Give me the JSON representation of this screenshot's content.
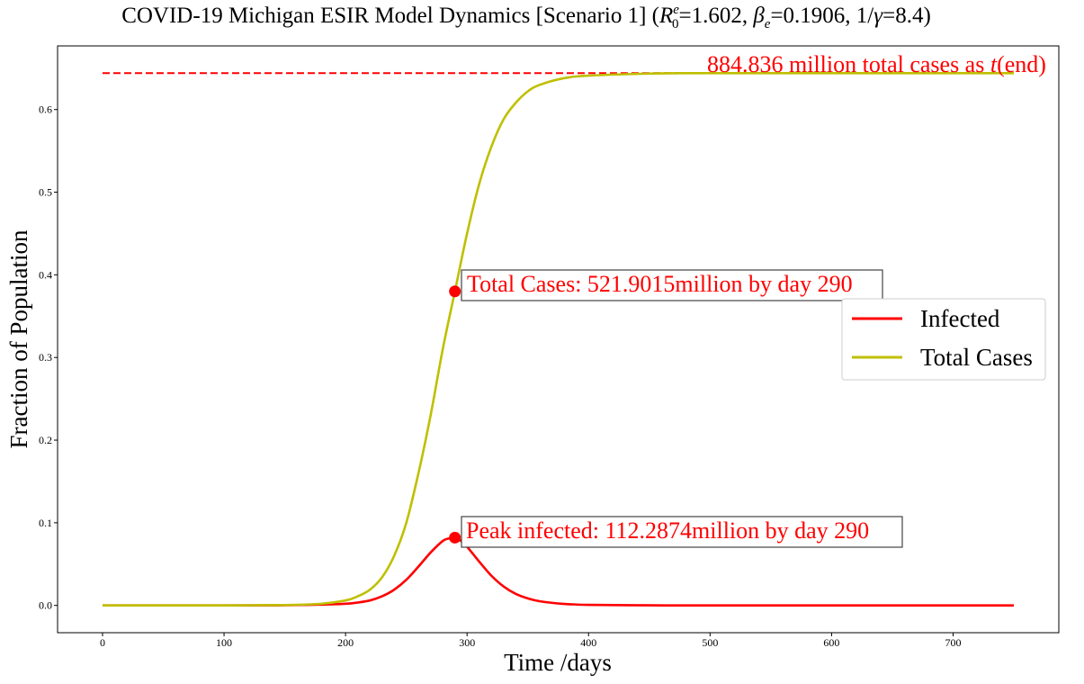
{
  "chart_data": {
    "type": "line",
    "title": "COVID-19 Michigan ESIR Model Dynamics [Scenario 1] (",
    "title_params": {
      "r0_symbol": "R",
      "r0_sup": "e",
      "r0_sub": "0",
      "r0_value": "=1.602, ",
      "beta_symbol": "β",
      "beta_sub": "e",
      "beta_value": "=0.1906, 1/",
      "gamma_symbol": "γ",
      "gamma_value": "=8.4)"
    },
    "xlabel": "Time /days",
    "ylabel": "Fraction of Population",
    "xlim": [
      -37,
      787
    ],
    "ylim": [
      -0.033,
      0.677
    ],
    "xticks": [
      0,
      100,
      200,
      300,
      400,
      500,
      600,
      700
    ],
    "yticks": [
      0.0,
      0.1,
      0.2,
      0.3,
      0.4,
      0.5,
      0.6
    ],
    "xtick_labels": [
      "0",
      "100",
      "200",
      "300",
      "400",
      "500",
      "600",
      "700"
    ],
    "ytick_labels": [
      "0.0",
      "0.1",
      "0.2",
      "0.3",
      "0.4",
      "0.5",
      "0.6"
    ],
    "grid": false,
    "legend": {
      "position": "center-right",
      "entries": [
        {
          "name": "Infected",
          "color": "#ff0000"
        },
        {
          "name": "Total Cases",
          "color": "#bfbf00"
        }
      ]
    },
    "series": [
      {
        "name": "Infected",
        "color": "#ff0000",
        "x": [
          0,
          100,
          150,
          180,
          200,
          210,
          220,
          230,
          240,
          250,
          260,
          270,
          280,
          285,
          290,
          295,
          300,
          310,
          320,
          330,
          340,
          350,
          360,
          380,
          400,
          450,
          500,
          600,
          750
        ],
        "y": [
          0.0,
          0.0,
          0.0002,
          0.001,
          0.002,
          0.0035,
          0.006,
          0.011,
          0.019,
          0.031,
          0.047,
          0.064,
          0.078,
          0.081,
          0.082,
          0.078,
          0.071,
          0.053,
          0.036,
          0.023,
          0.014,
          0.0085,
          0.005,
          0.0018,
          0.0007,
          0.0001,
          0.0,
          0.0,
          0.0
        ]
      },
      {
        "name": "Total Cases",
        "color": "#bfbf00",
        "x": [
          0,
          100,
          150,
          180,
          200,
          210,
          220,
          230,
          240,
          250,
          260,
          270,
          280,
          290,
          300,
          310,
          320,
          330,
          340,
          350,
          360,
          380,
          400,
          450,
          500,
          600,
          750
        ],
        "y": [
          0.0,
          0.0,
          0.0005,
          0.002,
          0.006,
          0.011,
          0.019,
          0.034,
          0.06,
          0.1,
          0.16,
          0.23,
          0.31,
          0.38,
          0.45,
          0.51,
          0.555,
          0.588,
          0.608,
          0.622,
          0.63,
          0.638,
          0.641,
          0.6435,
          0.644,
          0.644,
          0.644
        ]
      }
    ],
    "hline": {
      "y": 0.644,
      "xrange": [
        0,
        750
      ],
      "color": "#ff0000",
      "style": "dashed"
    },
    "annotations": [
      {
        "text": "884.836 million total cases as ",
        "math": "t",
        "suffix": "(end)",
        "x": 500,
        "y": 0.644,
        "color": "#ff0000"
      },
      {
        "text": "Total Cases: 521.9015million by day 290",
        "x": 290,
        "y": 0.38,
        "color": "#ff0000",
        "boxed": true
      },
      {
        "text": "Peak infected: 112.2874million by day 290",
        "x": 290,
        "y": 0.082,
        "color": "#ff0000",
        "boxed": true
      }
    ],
    "markers": [
      {
        "x": 290,
        "y": 0.38,
        "color": "#ff0000"
      },
      {
        "x": 290,
        "y": 0.082,
        "color": "#ff0000"
      }
    ]
  }
}
